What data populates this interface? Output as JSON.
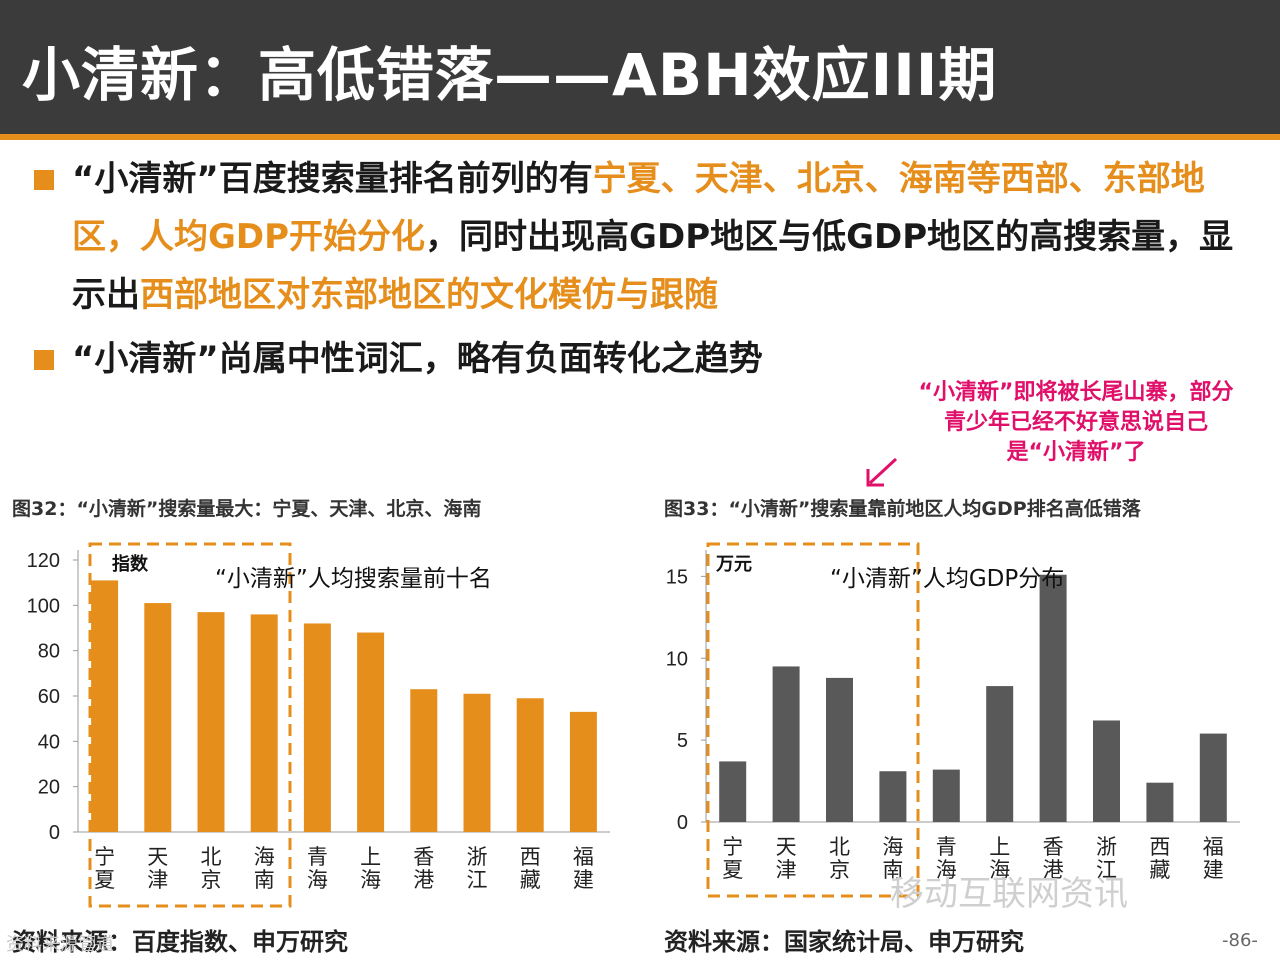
{
  "slide": {
    "title": "小清新：高低错落——ABH效应III期",
    "page_number": "-86-",
    "accent_color": "#e58e1b",
    "highlight_color": "#e0106a"
  },
  "bullets": [
    {
      "segments": [
        {
          "text": "“小清新”百度搜索量排名前列的有",
          "highlight": false
        },
        {
          "text": "宁夏、天津、北京、海南等西部、东部地区，人均GDP开始分化",
          "highlight": true
        },
        {
          "text": "，同时出现高GDP地区与低GDP地区的高搜索量，显示出",
          "highlight": false
        },
        {
          "text": "西部地区对东部地区的文化模仿与跟随",
          "highlight": true
        }
      ]
    },
    {
      "segments": [
        {
          "text": "“小清新”尚属中性词汇，略有负面转化之趋势",
          "highlight": false
        }
      ]
    }
  ],
  "annotation": {
    "text": "“小清新”即将被长尾山寨，部分青少年已经不好意思说自己是“小清新”了"
  },
  "figures": [
    {
      "caption": "图32：“小清新”搜索量最大：宁夏、天津、北京、海南",
      "source": "资料来源：百度指数、申万研究"
    },
    {
      "caption": "图33：“小清新”搜索量靠前地区人均GDP排名高低错落",
      "source": "资料来源：国家统计局、申万研究"
    }
  ],
  "watermark": "移动互联网资讯",
  "watermark_corner": "资料来源管道",
  "chart_data": [
    {
      "type": "bar",
      "title": "“小清新”人均搜索量前十名",
      "ylabel": "指数",
      "categories": [
        "宁夏",
        "天津",
        "北京",
        "海南",
        "青海",
        "上海",
        "香港",
        "浙江",
        "西藏",
        "福建"
      ],
      "values": [
        111,
        101,
        97,
        96,
        92,
        88,
        63,
        61,
        59,
        53
      ],
      "ylim": [
        0,
        120
      ],
      "yticks": [
        0,
        20,
        40,
        60,
        80,
        100,
        120
      ],
      "highlight_group": [
        "宁夏",
        "天津",
        "北京",
        "海南"
      ],
      "bar_color": "#e58e1b",
      "grid": false
    },
    {
      "type": "bar",
      "title": "“小清新”人均GDP分布",
      "ylabel": "万元",
      "categories": [
        "宁夏",
        "天津",
        "北京",
        "海南",
        "青海",
        "上海",
        "香港",
        "浙江",
        "西藏",
        "福建"
      ],
      "values": [
        3.7,
        9.5,
        8.8,
        3.1,
        3.2,
        8.3,
        15.1,
        6.2,
        2.4,
        5.4
      ],
      "ylim": [
        0,
        16
      ],
      "yticks": [
        0,
        5,
        10,
        15
      ],
      "highlight_group": [
        "宁夏",
        "天津",
        "北京",
        "海南"
      ],
      "bar_color": "#595959",
      "grid": false
    }
  ]
}
